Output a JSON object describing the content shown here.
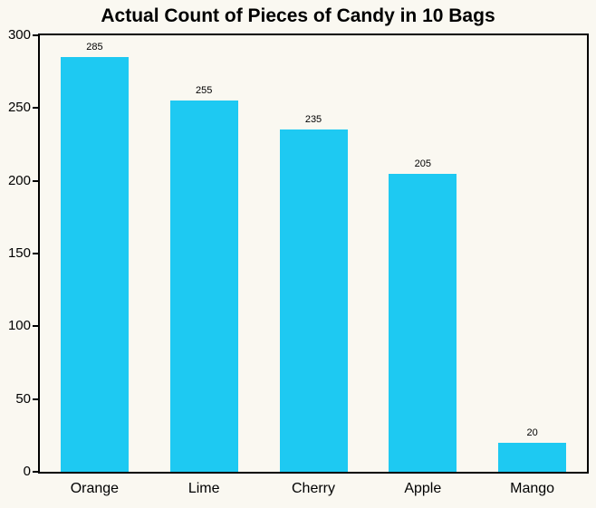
{
  "chart_data": {
    "type": "bar",
    "title": "Actual Count of Pieces of Candy in 10 Bags",
    "categories": [
      "Orange",
      "Lime",
      "Cherry",
      "Apple",
      "Mango"
    ],
    "values": [
      285,
      255,
      235,
      205,
      20
    ],
    "xlabel": "",
    "ylabel": "",
    "ylim": [
      0,
      300
    ],
    "yticks": [
      0,
      50,
      100,
      150,
      200,
      250,
      300
    ],
    "grid": false,
    "legend": false,
    "bar_color": "#1EC9F2",
    "background_color": "#FAF8F1",
    "border_color": "#000000"
  }
}
